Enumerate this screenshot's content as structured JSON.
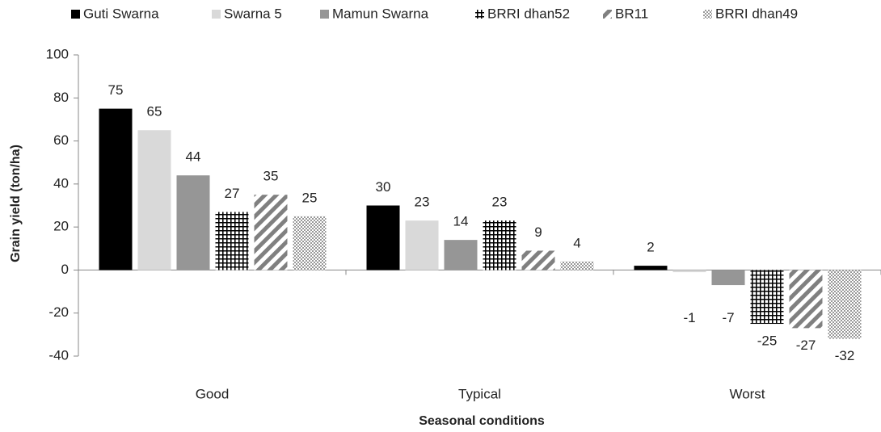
{
  "chart_data": {
    "type": "bar",
    "x_label": "Seasonal conditions",
    "y_label": "Grain yield (ton/ha)",
    "categories": [
      "Good",
      "Typical",
      "Worst"
    ],
    "series": [
      {
        "name": "Guti Swarna",
        "color": "#000000",
        "pattern": "solid",
        "values": [
          75,
          30,
          2
        ]
      },
      {
        "name": "Swarna 5",
        "color": "#d9d9d9",
        "pattern": "solid",
        "values": [
          65,
          23,
          -1
        ]
      },
      {
        "name": "Mamun Swarna",
        "color": "#969696",
        "pattern": "solid",
        "values": [
          44,
          14,
          -7
        ]
      },
      {
        "name": "BRRI dhan52",
        "color": "#000000",
        "pattern": "grid",
        "values": [
          27,
          23,
          -25
        ]
      },
      {
        "name": "BR11",
        "color": "#808080",
        "pattern": "diagonal",
        "values": [
          35,
          9,
          -27
        ]
      },
      {
        "name": "BRRI dhan49",
        "color": "#999999",
        "pattern": "dots",
        "values": [
          25,
          4,
          -32
        ]
      }
    ],
    "ylim": [
      -40,
      100
    ],
    "yticks": [
      -40,
      -20,
      0,
      20,
      40,
      60,
      80,
      100
    ],
    "grid": false,
    "legend": "top"
  }
}
